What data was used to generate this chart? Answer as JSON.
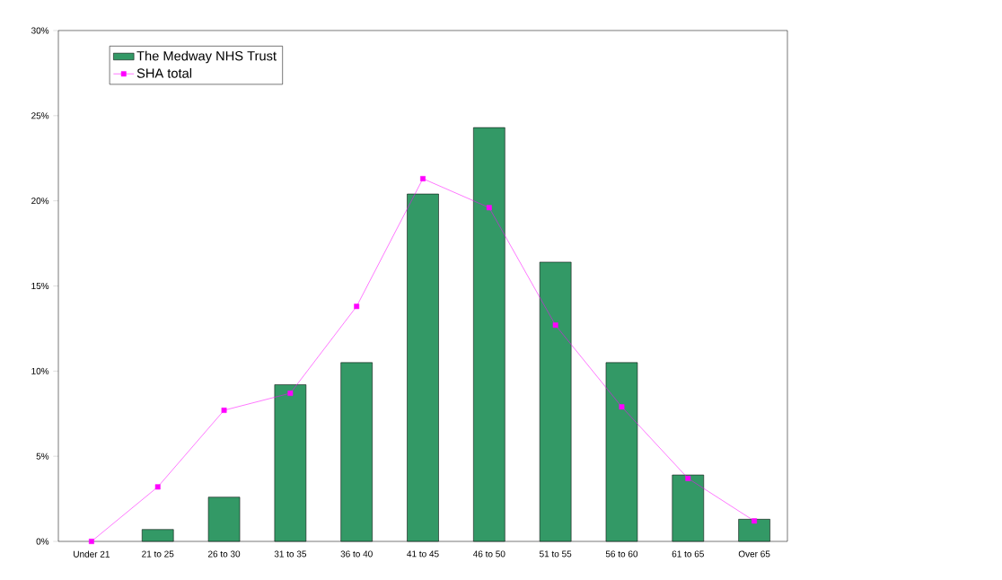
{
  "chart_data": {
    "type": "bar",
    "categories": [
      "Under 21",
      "21 to 25",
      "26 to 30",
      "31 to 35",
      "36 to 40",
      "41 to 45",
      "46 to 50",
      "51 to 55",
      "56 to 60",
      "61 to 65",
      "Over 65"
    ],
    "series": [
      {
        "name": "The Medway NHS Trust",
        "color": "#339966",
        "values": [
          null,
          0.7,
          2.6,
          9.2,
          10.5,
          20.4,
          24.3,
          16.4,
          10.5,
          3.9,
          1.3
        ]
      },
      {
        "name": "SHA total",
        "type": "line",
        "color": "#ff00ff",
        "marker": "square",
        "values": [
          0,
          3.2,
          7.7,
          8.7,
          13.8,
          21.3,
          19.6,
          12.7,
          7.9,
          3.7,
          1.2
        ]
      }
    ],
    "ylim": [
      0,
      30
    ],
    "yticks": [
      {
        "value": 0,
        "label": "0%"
      },
      {
        "value": 5,
        "label": "5%"
      },
      {
        "value": 10,
        "label": "10%"
      },
      {
        "value": 15,
        "label": "15%"
      },
      {
        "value": 20,
        "label": "20%"
      },
      {
        "value": 25,
        "label": "25%"
      },
      {
        "value": 30,
        "label": "30%"
      }
    ],
    "legend": "top left",
    "grid": false
  }
}
